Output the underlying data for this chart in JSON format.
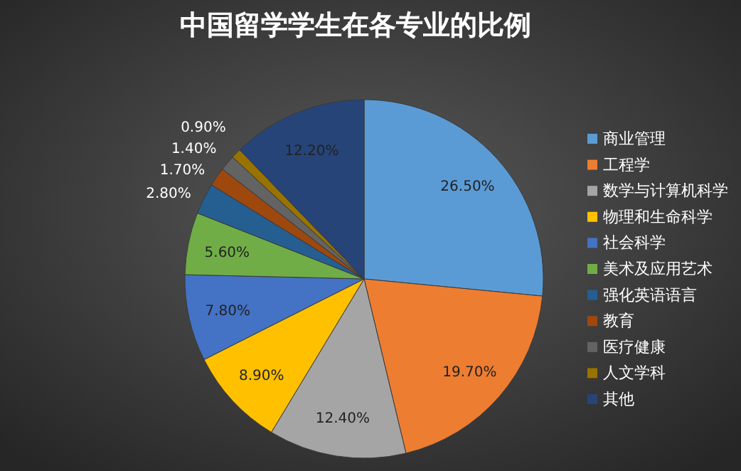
{
  "chart_data": {
    "type": "pie",
    "title": "中国留学学生在各专业的比例",
    "categories": [
      "商业管理",
      "工程学",
      "数学与计算机科学",
      "物理和生命科学",
      "社会科学",
      "美术及应用艺术",
      "强化英语语言",
      "教育",
      "医疗健康",
      "人文学科",
      "其他"
    ],
    "values": [
      26.5,
      19.7,
      12.4,
      8.9,
      7.8,
      5.6,
      2.8,
      1.7,
      1.4,
      0.9,
      12.2
    ],
    "colors": [
      "#5b9bd5",
      "#ed7d31",
      "#a5a5a5",
      "#ffc000",
      "#4472c4",
      "#70ad47",
      "#255e91",
      "#9e480e",
      "#636363",
      "#997300",
      "#264478"
    ],
    "value_labels": [
      "26.50%",
      "19.70%",
      "12.40%",
      "8.90%",
      "7.80%",
      "5.60%",
      "2.80%",
      "1.70%",
      "1.40%",
      "0.90%",
      "12.20%"
    ],
    "legend": "right"
  }
}
